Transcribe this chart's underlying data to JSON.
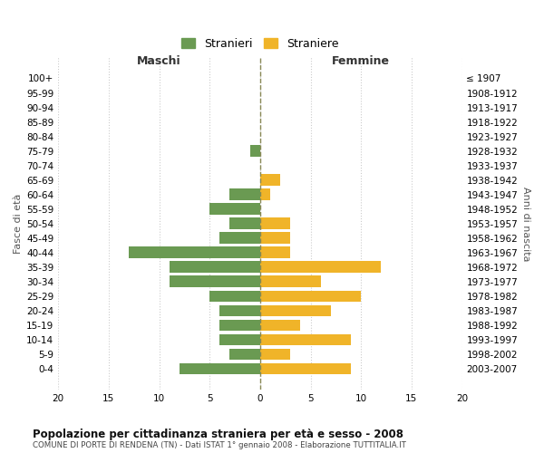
{
  "age_groups": [
    "100+",
    "95-99",
    "90-94",
    "85-89",
    "80-84",
    "75-79",
    "70-74",
    "65-69",
    "60-64",
    "55-59",
    "50-54",
    "45-49",
    "40-44",
    "35-39",
    "30-34",
    "25-29",
    "20-24",
    "15-19",
    "10-14",
    "5-9",
    "0-4"
  ],
  "birth_years": [
    "≤ 1907",
    "1908-1912",
    "1913-1917",
    "1918-1922",
    "1923-1927",
    "1928-1932",
    "1933-1937",
    "1938-1942",
    "1943-1947",
    "1948-1952",
    "1953-1957",
    "1958-1962",
    "1963-1967",
    "1968-1972",
    "1973-1977",
    "1978-1982",
    "1983-1987",
    "1988-1992",
    "1993-1997",
    "1998-2002",
    "2003-2007"
  ],
  "maschi": [
    0,
    0,
    0,
    0,
    0,
    1,
    0,
    0,
    3,
    5,
    3,
    4,
    13,
    9,
    9,
    5,
    4,
    4,
    4,
    3,
    8
  ],
  "femmine": [
    0,
    0,
    0,
    0,
    0,
    0,
    0,
    2,
    1,
    0,
    3,
    3,
    3,
    12,
    6,
    10,
    7,
    4,
    9,
    3,
    9
  ],
  "color_maschi": "#6a9a52",
  "color_femmine": "#f0b429",
  "title": "Popolazione per cittadinanza straniera per età e sesso - 2008",
  "subtitle": "COMUNE DI PORTE DI RENDENA (TN) - Dati ISTAT 1° gennaio 2008 - Elaborazione TUTTITALIA.IT",
  "legend_maschi": "Stranieri",
  "legend_femmine": "Straniere",
  "xlabel_left": "Maschi",
  "xlabel_right": "Femmine",
  "ylabel_left": "Fasce di età",
  "ylabel_right": "Anni di nascita",
  "xlim": 20,
  "background_color": "#ffffff",
  "grid_color": "#cccccc",
  "bar_height": 0.8
}
